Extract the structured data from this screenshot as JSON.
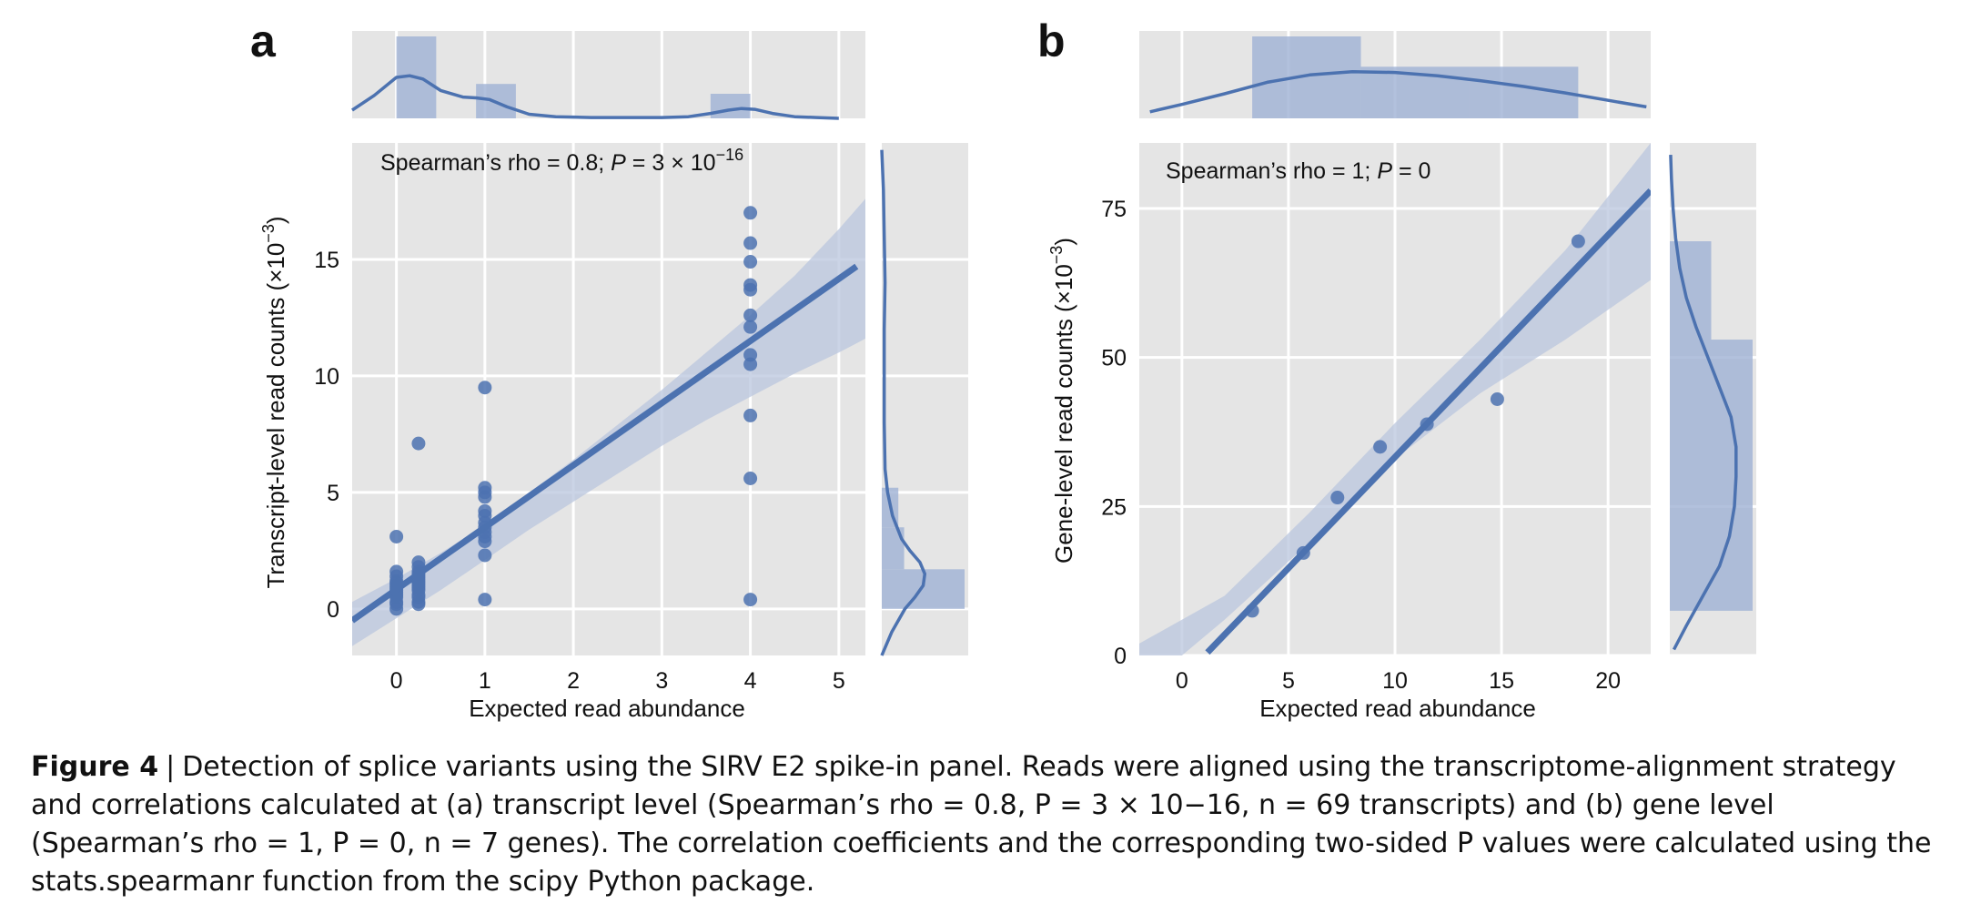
{
  "colors": {
    "panel_bg": "#e5e5e5",
    "grid": "#ffffff",
    "series": "#4c72b0",
    "band": "#b9c6dd",
    "hist": "#9fb1d4"
  },
  "chart_data": [
    {
      "panel_label": "a",
      "type": "scatter",
      "xlabel": "Expected read abundance",
      "ylabel": "Transcript-level read counts (×10",
      "ylabel_exp": "−3",
      "ylabel_close": ")",
      "annotation": {
        "prefix": "Spearman’s rho = 0.8; ",
        "p_var": "P",
        "p_text": " = 3 × 10",
        "p_exp": "−16"
      },
      "xlim": [
        -0.5,
        5.3
      ],
      "ylim": [
        -2,
        20
      ],
      "xticks": [
        "0",
        "1",
        "2",
        "3",
        "4",
        "5"
      ],
      "yticks": [
        "0",
        "5",
        "10",
        "15"
      ],
      "points": [
        [
          0,
          0.0
        ],
        [
          0,
          0.2
        ],
        [
          0,
          0.3
        ],
        [
          0,
          0.5
        ],
        [
          0,
          0.6
        ],
        [
          0,
          0.7
        ],
        [
          0,
          0.8
        ],
        [
          0,
          0.9
        ],
        [
          0,
          1.0
        ],
        [
          0,
          1.1
        ],
        [
          0,
          1.2
        ],
        [
          0,
          1.4
        ],
        [
          0,
          1.6
        ],
        [
          0,
          3.1
        ],
        [
          0.25,
          0.2
        ],
        [
          0.25,
          0.3
        ],
        [
          0.25,
          0.5
        ],
        [
          0.25,
          0.6
        ],
        [
          0.25,
          0.8
        ],
        [
          0.25,
          0.9
        ],
        [
          0.25,
          1.0
        ],
        [
          0.25,
          1.1
        ],
        [
          0.25,
          1.2
        ],
        [
          0.25,
          1.3
        ],
        [
          0.25,
          1.4
        ],
        [
          0.25,
          1.5
        ],
        [
          0.25,
          1.6
        ],
        [
          0.25,
          1.8
        ],
        [
          0.25,
          2.0
        ],
        [
          0.25,
          7.1
        ],
        [
          1,
          0.4
        ],
        [
          1,
          2.3
        ],
        [
          1,
          2.9
        ],
        [
          1,
          3.1
        ],
        [
          1,
          3.3
        ],
        [
          1,
          3.5
        ],
        [
          1,
          3.7
        ],
        [
          1,
          4.0
        ],
        [
          1,
          4.2
        ],
        [
          1,
          4.8
        ],
        [
          1,
          5.0
        ],
        [
          1,
          5.2
        ],
        [
          1,
          9.5
        ],
        [
          4,
          0.4
        ],
        [
          4,
          5.6
        ],
        [
          4,
          8.3
        ],
        [
          4,
          10.5
        ],
        [
          4,
          10.9
        ],
        [
          4,
          12.1
        ],
        [
          4,
          12.6
        ],
        [
          4,
          13.7
        ],
        [
          4,
          13.9
        ],
        [
          4,
          14.9
        ],
        [
          4,
          15.7
        ],
        [
          4,
          17.0
        ]
      ],
      "fit": {
        "x": [
          -0.5,
          5.2
        ],
        "y": [
          -0.5,
          14.7
        ]
      },
      "ci_band": {
        "x": [
          -0.5,
          0.0,
          0.5,
          1.0,
          1.5,
          2.0,
          2.5,
          3.0,
          3.5,
          4.0,
          4.5,
          5.0,
          5.3
        ],
        "lower": [
          -1.6,
          -0.4,
          0.8,
          2.1,
          3.4,
          4.6,
          5.8,
          7.0,
          8.1,
          9.1,
          10.1,
          11.0,
          11.6
        ],
        "upper": [
          0.3,
          1.3,
          2.4,
          3.6,
          5.0,
          6.4,
          7.9,
          9.4,
          11.0,
          12.6,
          14.3,
          16.3,
          17.6
        ]
      },
      "marginal_x": {
        "hist": [
          {
            "x0": 0.0,
            "x1": 0.45,
            "density": 1.0
          },
          {
            "x0": 0.9,
            "x1": 1.35,
            "density": 0.42
          },
          {
            "x0": 3.55,
            "x1": 4.0,
            "density": 0.3
          }
        ],
        "kde_x": [
          -0.5,
          -0.25,
          0.0,
          0.15,
          0.3,
          0.5,
          0.75,
          0.9,
          1.05,
          1.25,
          1.5,
          1.8,
          2.2,
          2.6,
          3.0,
          3.3,
          3.55,
          3.75,
          3.9,
          4.05,
          4.25,
          4.5,
          4.75,
          5.0
        ],
        "kde_y": [
          0.1,
          0.28,
          0.5,
          0.52,
          0.48,
          0.34,
          0.26,
          0.25,
          0.23,
          0.14,
          0.05,
          0.02,
          0.01,
          0.01,
          0.01,
          0.02,
          0.06,
          0.1,
          0.12,
          0.11,
          0.06,
          0.02,
          0.01,
          0.0
        ]
      },
      "marginal_y": {
        "hist": [
          {
            "y0": 0.0,
            "y1": 1.7,
            "density": 1.0
          },
          {
            "y0": 1.7,
            "y1": 3.5,
            "density": 0.27
          },
          {
            "y0": 3.5,
            "y1": 5.2,
            "density": 0.2
          }
        ],
        "kde_y": [
          -2.0,
          -1.0,
          0.0,
          0.5,
          1.0,
          1.5,
          2.0,
          2.5,
          3.0,
          4.0,
          5.0,
          6.0,
          8.0,
          10.0,
          12.0,
          14.0,
          16.0,
          18.0,
          19.7
        ],
        "kde_v": [
          0.0,
          0.12,
          0.28,
          0.4,
          0.5,
          0.52,
          0.46,
          0.34,
          0.24,
          0.13,
          0.07,
          0.04,
          0.03,
          0.03,
          0.03,
          0.04,
          0.03,
          0.02,
          0.0
        ]
      }
    },
    {
      "panel_label": "b",
      "type": "scatter",
      "xlabel": "Expected read abundance",
      "ylabel": "Gene-level read counts (×10",
      "ylabel_exp": "−3",
      "ylabel_close": ")",
      "annotation": {
        "prefix": "Spearman’s rho = 1; ",
        "p_var": "P",
        "p_text": " = 0",
        "p_exp": ""
      },
      "xlim": [
        -2,
        22
      ],
      "ylim": [
        0,
        86
      ],
      "xticks": [
        "0",
        "5",
        "10",
        "15",
        "20"
      ],
      "yticks": [
        "0",
        "25",
        "50",
        "75"
      ],
      "points": [
        [
          3.3,
          7.5
        ],
        [
          5.7,
          17.2
        ],
        [
          7.3,
          26.5
        ],
        [
          9.3,
          35.0
        ],
        [
          11.5,
          38.8
        ],
        [
          14.8,
          43.0
        ],
        [
          18.6,
          69.5
        ]
      ],
      "fit": {
        "x": [
          1.2,
          22.0
        ],
        "y": [
          0.5,
          78.0
        ]
      },
      "ci_band": {
        "x": [
          -2,
          2,
          6,
          10,
          14,
          18,
          22
        ],
        "lower": [
          -6,
          6,
          19,
          33,
          44,
          53,
          63
        ],
        "upper": [
          2,
          10,
          24,
          39,
          53,
          68,
          86
        ]
      },
      "marginal_x": {
        "hist": [
          {
            "x0": 3.3,
            "x1": 8.4,
            "density": 1.0
          },
          {
            "x0": 8.4,
            "x1": 13.5,
            "density": 0.63
          },
          {
            "x0": 13.5,
            "x1": 18.6,
            "density": 0.63
          }
        ],
        "kde_x": [
          -1.5,
          0,
          2,
          4,
          6,
          8,
          10,
          12,
          14,
          16,
          18,
          20,
          21.8
        ],
        "kde_y": [
          0.08,
          0.17,
          0.3,
          0.44,
          0.53,
          0.57,
          0.56,
          0.52,
          0.46,
          0.39,
          0.31,
          0.22,
          0.14
        ]
      },
      "marginal_y": {
        "hist": [
          {
            "y0": 7.5,
            "y1": 53.0,
            "density": 1.0
          },
          {
            "y0": 53.0,
            "y1": 69.5,
            "density": 0.5
          }
        ],
        "kde_y": [
          1,
          5,
          10,
          15,
          20,
          25,
          30,
          35,
          40,
          45,
          50,
          55,
          60,
          65,
          70,
          75,
          80,
          84
        ],
        "kde_v": [
          0.05,
          0.2,
          0.4,
          0.6,
          0.72,
          0.78,
          0.8,
          0.8,
          0.74,
          0.6,
          0.46,
          0.32,
          0.2,
          0.12,
          0.07,
          0.04,
          0.02,
          0.01
        ]
      }
    }
  ],
  "caption": {
    "label": "Figure 4",
    "separator": "|",
    "text": "Detection of splice variants using the SIRV E2 spike-in panel. Reads were aligned using the transcriptome-alignment strategy and correlations calculated at (a) transcript level (Spearman’s rho = 0.8, P = 3 × 10−16, n = 69 transcripts) and (b) gene level (Spearman’s rho = 1, P = 0, n = 7 genes). The correlation coefficients and the corresponding two-sided P values were calculated using the stats.spearmanr function from the scipy Python package."
  }
}
